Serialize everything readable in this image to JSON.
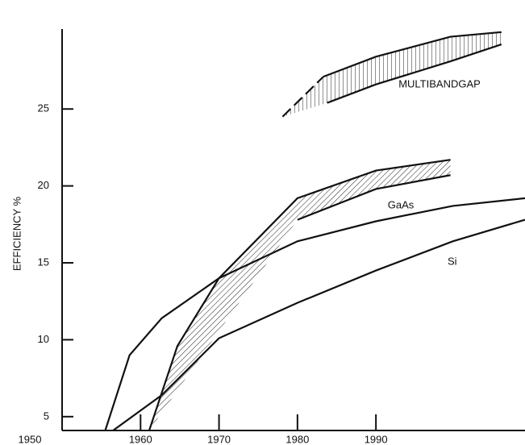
{
  "chart_data": {
    "type": "line",
    "ylabel": "EFFICIENCY %",
    "xlim": [
      1950,
      2009
    ],
    "xticks": [
      1950,
      1960,
      1970,
      1980,
      1990
    ],
    "ylim": [
      4.1,
      30.2
    ],
    "yticks": [
      5,
      10,
      15,
      20,
      25
    ],
    "color": "#111111",
    "series": [
      {
        "name": "Si",
        "style": "solid",
        "x": [
          1956.5,
          1962.7,
          1970,
          1980,
          1990,
          1999.8,
          2009
        ],
        "values": [
          4.1,
          6.4,
          10.1,
          12.4,
          14.5,
          16.4,
          17.8
        ]
      },
      {
        "style": "solid",
        "x": [
          1955.5,
          1958.6,
          1962.7,
          1970,
          1980,
          1990,
          1999.8,
          2009
        ],
        "values": [
          4.1,
          9.0,
          11.4,
          14.0,
          16.4,
          17.7,
          18.7,
          19.2
        ]
      },
      {
        "style": "solid",
        "x": [
          1961.1,
          1964.7,
          1970,
          1980,
          1990,
          1999.5
        ],
        "values": [
          4.1,
          9.6,
          14.0,
          19.2,
          21.0,
          21.7
        ]
      },
      {
        "name": "GaAs",
        "style": "solid",
        "x": [
          1980,
          1990,
          1999.5
        ],
        "values": [
          17.8,
          19.8,
          20.7
        ]
      },
      {
        "style": "dashed",
        "x": [
          1978.1,
          1983.3
        ],
        "values": [
          24.5,
          27.1
        ]
      },
      {
        "style": "solid",
        "x": [
          1983.3,
          1990,
          1999.5,
          2006
        ],
        "values": [
          27.1,
          28.4,
          29.7,
          30.0
        ]
      },
      {
        "name": "MULTIBANDGAP",
        "style": "solid",
        "x": [
          1983.8,
          1990,
          1999.5,
          2006
        ],
        "values": [
          25.4,
          26.6,
          28.1,
          29.2
        ]
      }
    ]
  }
}
